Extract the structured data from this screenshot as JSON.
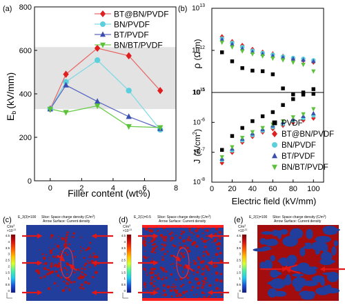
{
  "panels": {
    "a": "(a)",
    "b": "(b)",
    "c": "(c)",
    "d": "(d)",
    "e": "(e)"
  },
  "chart_data": [
    {
      "id": "a",
      "type": "line",
      "xlabel": "Filler content (wt%)",
      "ylabel": "E",
      "ylabel_sub": "b",
      "ylabel_unit": "(kV/mm)",
      "x": [
        0,
        1,
        3,
        5,
        7
      ],
      "xlim": [
        -1,
        8
      ],
      "ylim": [
        0,
        800
      ],
      "xticks": [
        "0",
        "2",
        "4",
        "6",
        "8"
      ],
      "xtick_values": [
        0,
        2,
        4,
        6,
        8
      ],
      "yticks": [
        "0",
        "200",
        "400",
        "600",
        "800"
      ],
      "ytick_values": [
        0,
        200,
        400,
        600,
        800
      ],
      "shaded_band": [
        330,
        615
      ],
      "legend_position": "top-right",
      "series": [
        {
          "name": "BT@BN/PVDF",
          "marker": "diamond",
          "color": "#e02020",
          "line": "#e66b6b",
          "values": [
            330,
            490,
            610,
            575,
            415
          ]
        },
        {
          "name": "BN/PVDF",
          "marker": "circle",
          "color": "#5bd0dc",
          "line": "#7fd9e3",
          "values": [
            330,
            455,
            555,
            415,
            235
          ]
        },
        {
          "name": "BT/PVDF",
          "marker": "triangle-up",
          "color": "#3a4fb0",
          "line": "#5a68c0",
          "values": [
            330,
            440,
            365,
            295,
            240
          ]
        },
        {
          "name": "BN/BT/PVDF",
          "marker": "triangle-down",
          "color": "#5cc23a",
          "line": "#6ccc4c",
          "values": [
            330,
            315,
            345,
            250,
            245
          ]
        }
      ]
    },
    {
      "id": "b-top",
      "type": "scatter",
      "ylabel": "ρ",
      "ylabel_unit": "(Ω·m)",
      "scale": "log",
      "ylim": [
        100000000000.0,
        10000000000000.0
      ],
      "yticks": [
        "10",
        "10",
        "10"
      ],
      "ytick_exp": [
        "11",
        "12",
        "13"
      ],
      "xlim": [
        0,
        110
      ],
      "x": [
        10,
        20,
        30,
        40,
        50,
        60,
        70,
        80,
        90,
        100
      ],
      "series": [
        {
          "name": "PVDF",
          "marker": "square",
          "color": "#000000",
          "values": [
            900000000000.0,
            550000000000.0,
            380000000000.0,
            330000000000.0,
            320000000000.0,
            270000000000.0,
            125000000000.0,
            90000000000.0,
            100000000000.0,
            120000000000.0
          ]
        },
        {
          "name": "BT@BN/PVDF",
          "marker": "diamond",
          "color": "#e02020",
          "values": [
            2100000000000.0,
            1600000000000.0,
            1300000000000.0,
            1050000000000.0,
            900000000000.0,
            820000000000.0,
            720000000000.0,
            620000000000.0,
            580000000000.0,
            530000000000.0
          ]
        },
        {
          "name": "BN/PVDF",
          "marker": "circle",
          "color": "#5bd0dc",
          "values": [
            1900000000000.0,
            1500000000000.0,
            1200000000000.0,
            980000000000.0,
            860000000000.0,
            790000000000.0,
            710000000000.0,
            660000000000.0,
            630000000000.0,
            580000000000.0
          ]
        },
        {
          "name": "BT/PVDF",
          "marker": "triangle-up",
          "color": "#3a4fb0",
          "values": [
            1800000000000.0,
            1400000000000.0,
            1100000000000.0,
            920000000000.0,
            820000000000.0,
            740000000000.0,
            680000000000.0,
            630000000000.0,
            590000000000.0,
            550000000000.0
          ]
        },
        {
          "name": "BN/BT/PVDF",
          "marker": "triangle-down",
          "color": "#5cc23a",
          "values": [
            1550000000000.0,
            1200000000000.0,
            960000000000.0,
            820000000000.0,
            730000000000.0,
            650000000000.0,
            590000000000.0,
            520000000000.0,
            460000000000.0,
            320000000000.0
          ]
        }
      ]
    },
    {
      "id": "b-bottom",
      "type": "scatter",
      "xlabel": "Electric field (kV/mm)",
      "ylabel": "J",
      "ylabel_unit": "(A/cm",
      "ylabel_sup": "2",
      "ylabel_close": ")",
      "scale": "log",
      "ylim": [
        1e-08,
        1e-05
      ],
      "yticks": [
        "10",
        "10",
        "10",
        "10"
      ],
      "ytick_exp": [
        "-8",
        "-7",
        "-6",
        "-5"
      ],
      "xlim": [
        0,
        110
      ],
      "xticks": [
        "0",
        "20",
        "40",
        "60",
        "80",
        "100"
      ],
      "xtick_values": [
        0,
        20,
        40,
        60,
        80,
        100
      ],
      "x": [
        10,
        20,
        30,
        40,
        50,
        60,
        70,
        80,
        90,
        100
      ],
      "legend_position": "bottom-right",
      "series": [
        {
          "name": "PVDF",
          "marker": "square",
          "color": "#000000",
          "values": [
            1.2e-07,
            3.5e-07,
            6.5e-07,
            1.1e-06,
            1.6e-06,
            2.2e-06,
            3.8e-06,
            6e-06,
            8.5e-06,
            9e-06
          ]
        },
        {
          "name": "BT@BN/PVDF",
          "marker": "diamond",
          "color": "#e02020",
          "values": [
            4.5e-08,
            1e-07,
            2.2e-07,
            3.4e-07,
            4.8e-07,
            6.2e-07,
            8e-07,
            1e-06,
            1.2e-06,
            1.4e-06
          ]
        },
        {
          "name": "BN/PVDF",
          "marker": "circle",
          "color": "#5bd0dc",
          "values": [
            5.5e-08,
            1.15e-07,
            2.5e-07,
            3.8e-07,
            5.3e-07,
            7e-07,
            9e-07,
            1.15e-06,
            1.4e-06,
            1.7e-06
          ]
        },
        {
          "name": "BT/PVDF",
          "marker": "triangle-up",
          "color": "#3a4fb0",
          "values": [
            6e-08,
            1.3e-07,
            2.8e-07,
            4.2e-07,
            5.8e-07,
            7.7e-07,
            1e-06,
            1.3e-06,
            1.6e-06,
            2e-06
          ]
        },
        {
          "name": "BN/BT/PVDF",
          "marker": "triangle-down",
          "color": "#5cc23a",
          "values": [
            7e-08,
            1.5e-07,
            3.1e-07,
            4.8e-07,
            6.6e-07,
            8.6e-07,
            1.1e-06,
            1.5e-06,
            1.9e-06,
            2.8e-06
          ]
        }
      ]
    }
  ],
  "simulations": [
    {
      "id": "c",
      "param": "E_3(3)=100",
      "slice": "Slice: Space charge density (C/m",
      "slice_sup": "3",
      "slice_close": ")",
      "arrow": "Arrow Surface: Current density",
      "style": "sparse"
    },
    {
      "id": "d",
      "param": "E_2(1)=0.5",
      "slice": "Slice: Space charge density (C/m",
      "slice_sup": "3",
      "slice_close": ")",
      "arrow": "Arrow Surface: Current density",
      "style": "dense"
    },
    {
      "id": "e",
      "param": "E_2(1)=100",
      "slice": "Slice: Space charge density (C/m",
      "slice_sup": "3",
      "slice_close": ")",
      "arrow": "Arrow Surface: Current density",
      "style": "red"
    }
  ],
  "colorbar": {
    "unit": "C/m",
    "unit_sup": "3",
    "scale": "×10",
    "scale_exp": "-11",
    "ticks": [
      "4.5",
      "4",
      "3.5",
      "3",
      "2.5",
      "2",
      "1.5",
      "1",
      "0.5",
      "0"
    ],
    "colors": [
      "#7a0000",
      "#d01010",
      "#ff5a00",
      "#ffc000",
      "#e0ff30",
      "#70ff90",
      "#20e0e0",
      "#1a8cff",
      "#1a3fcf",
      "#101a80"
    ]
  },
  "colors": {
    "axis": "#000000",
    "band": "#e3e3e3",
    "sim_blue": "#213e9c",
    "sim_red": "#a30d0d",
    "arrow": "#e01818"
  }
}
